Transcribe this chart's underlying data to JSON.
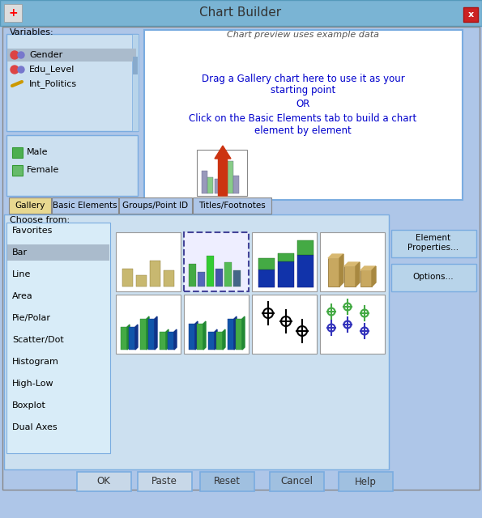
{
  "title": "Chart Builder",
  "bg_color": "#aec6e8",
  "titlebar_color": "#7ab4d4",
  "close_btn_color": "#cc2222",
  "panel_bg": "#d6e8f7",
  "white": "#ffffff",
  "variables": [
    "Gender",
    "Edu_Level",
    "Int_Politics"
  ],
  "legend_items": [
    "Male",
    "Female"
  ],
  "legend_colors": [
    "#4caf50",
    "#66bb6a"
  ],
  "preview_text1": "Drag a Gallery chart here to use it as your",
  "preview_text2": "starting point",
  "preview_text3": "OR",
  "preview_text4": "Click on the Basic Elements tab to build a chart",
  "preview_text5": "element by element",
  "preview_text_color": "#0000cc",
  "chart_preview_label": "Chart preview uses example data",
  "tabs": [
    "Gallery",
    "Basic Elements",
    "Groups/Point ID",
    "Titles/Footnotes"
  ],
  "active_tab": "Gallery",
  "choose_from_label": "Choose from:",
  "menu_items": [
    "Favorites",
    "Bar",
    "Line",
    "Area",
    "Pie/Polar",
    "Scatter/Dot",
    "Histogram",
    "High-Low",
    "Boxplot",
    "Dual Axes"
  ],
  "selected_menu": "Bar",
  "buttons": [
    "OK",
    "Paste",
    "Reset",
    "Cancel",
    "Help"
  ],
  "right_buttons": [
    "Element\nProperties...",
    "Options..."
  ],
  "variables_label": "Variables:"
}
